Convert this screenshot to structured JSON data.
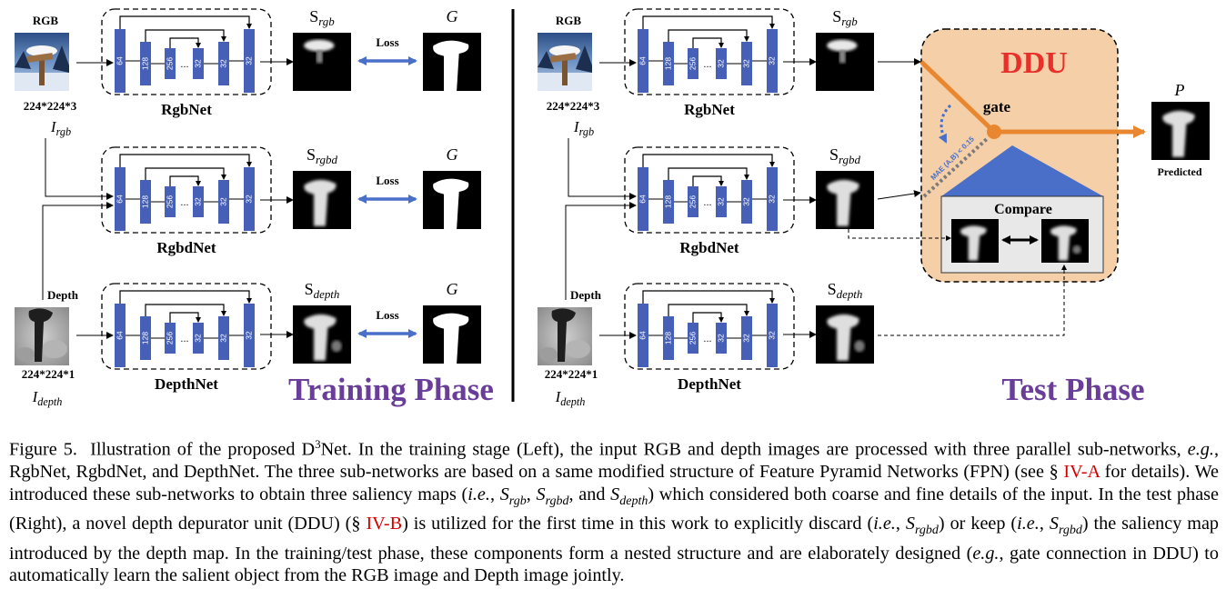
{
  "training": {
    "rgb_label": "RGB",
    "depth_label": "Depth",
    "size_rgb": "224*224*3",
    "size_depth": "224*224*1",
    "i_rgb": {
      "base": "I",
      "sub": "rgb"
    },
    "i_depth": {
      "base": "I",
      "sub": "depth"
    },
    "net_names": [
      "RgbNet",
      "RgbdNet",
      "DepthNet"
    ],
    "channels": [
      "64",
      "128",
      "256",
      "...",
      "32",
      "32",
      "32"
    ],
    "s_labels": [
      {
        "base": "S",
        "sub": "rgb"
      },
      {
        "base": "S",
        "sub": "rgbd"
      },
      {
        "base": "S",
        "sub": "depth"
      }
    ],
    "g_label": "G",
    "loss_label": "Loss",
    "phase_title": "Training Phase"
  },
  "test": {
    "rgb_label": "RGB",
    "depth_label": "Depth",
    "size_rgb": "224*224*3",
    "size_depth": "224*224*1",
    "i_rgb": {
      "base": "I",
      "sub": "rgb"
    },
    "i_depth": {
      "base": "I",
      "sub": "depth"
    },
    "net_names": [
      "RgbNet",
      "RgbdNet",
      "DepthNet"
    ],
    "s_labels": [
      {
        "base": "S",
        "sub": "rgb"
      },
      {
        "base": "S",
        "sub": "rgbd"
      },
      {
        "base": "S",
        "sub": "depth"
      }
    ],
    "ddu_title": "DDU",
    "gate_label": "gate",
    "mae_label": "MAE (A,B) < 0.15",
    "compare_label": "Compare",
    "p_label": "P",
    "predicted_label": "Predicted",
    "phase_title": "Test Phase"
  },
  "colors": {
    "block": "#4660b8",
    "loss_arrow": "#4a6fc9",
    "ddu_fill": "#f5cfa8",
    "ddu_title": "#e8302a",
    "orange": "#e8872f",
    "phase_title": "#6a3d9a",
    "triangle": "#4a6fc9",
    "ref": "#d40000"
  },
  "caption": {
    "fig_label": "Figure 5.",
    "t1": "Illustration of the proposed D",
    "sup3": "3",
    "t2": "Net. In the training stage (Left), the input RGB and depth images are processed with three parallel sub-networks, ",
    "eg1": "e.g.",
    "t3": ", RgbNet, RgbdNet, and DepthNet. The three sub-networks are based on a same modified structure of Feature Pyramid Networks (FPN) (see § ",
    "ref1": "IV-A",
    "t4": " for details). We introduced these sub-networks to obtain three saliency maps (",
    "ie1": "i.e.",
    "t5": ", ",
    "s_rgb": "S",
    "s_rgb_sub": "rgb",
    "t6": ", ",
    "s_rgbd": "S",
    "s_rgbd_sub": "rgbd",
    "t7": ", and ",
    "s_depth": "S",
    "s_depth_sub": "depth",
    "t8": ") which considered both coarse and fine details of the input. In the test phase (Right), a novel depth depurator unit (DDU) (§ ",
    "ref2": "IV-B",
    "t9": ") is utilized for the first time in this work to explicitly discard (",
    "ie2": "i.e.",
    "t10": ", ",
    "s_rgbd2": "S",
    "s_rgbd2_sub": "rgbd",
    "t11": ") or keep (",
    "ie3": "i.e.",
    "t12": ", ",
    "s_rgbd3": "S",
    "s_rgbd3_sub": "rgbd",
    "t13": ") the saliency map introduced by the depth map. In the training/test phase, these components form a nested structure and are elaborately designed (",
    "eg2": "e.g.",
    "t14": ", gate connection in DDU) to automatically learn the salient object from the RGB image and Depth image jointly."
  }
}
